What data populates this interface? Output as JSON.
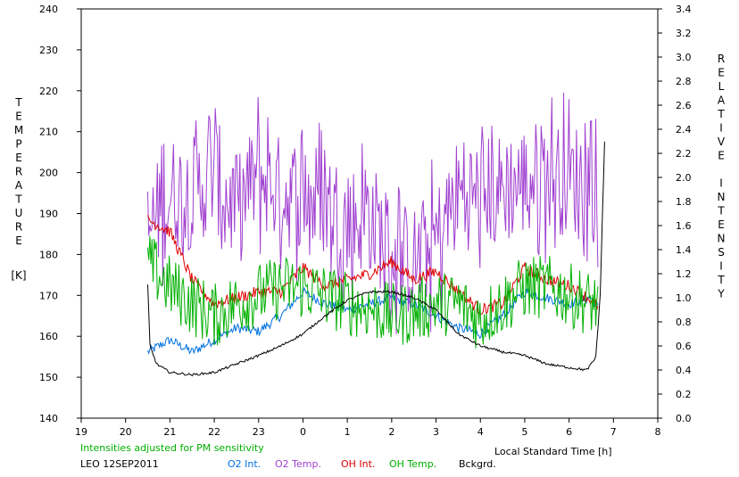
{
  "chart_data": {
    "type": "line",
    "x_axis": {
      "min": 19,
      "max": 8,
      "ticks": [
        "19",
        "20",
        "21",
        "22",
        "23",
        "0",
        "1",
        "2",
        "3",
        "4",
        "5",
        "6",
        "7",
        "8"
      ],
      "label": "Local Standard Time [h]"
    },
    "y_left": {
      "min": 140,
      "max": 240,
      "ticks": [
        140,
        150,
        160,
        170,
        180,
        190,
        200,
        210,
        220,
        230,
        240
      ],
      "label_letters": [
        "T",
        "E",
        "M",
        "P",
        "E",
        "R",
        "A",
        "T",
        "U",
        "R",
        "E"
      ],
      "unit": "[K]"
    },
    "y_right": {
      "min": 0.0,
      "max": 3.4,
      "ticks": [
        "0.0",
        "0.2",
        "0.4",
        "0.6",
        "0.8",
        "1.0",
        "1.2",
        "1.4",
        "1.6",
        "1.8",
        "2.0",
        "2.2",
        "2.4",
        "2.6",
        "2.8",
        "3.0",
        "3.2",
        "3.4"
      ],
      "label_letters": [
        "R",
        "E",
        "L",
        "A",
        "T",
        "I",
        "V",
        "E",
        "",
        "I",
        "N",
        "T",
        "E",
        "N",
        "S",
        "I",
        "T",
        "Y"
      ]
    },
    "note": "Intensities adjusted for PM sensitivity",
    "station": "LEO 12SEP2011",
    "series": [
      {
        "name": "O2 Int.",
        "color": "#0070e0",
        "axis": "right",
        "x": [
          20.5,
          21.0,
          21.5,
          22.0,
          22.5,
          23.0,
          23.5,
          0.0,
          0.5,
          1.0,
          1.5,
          2.0,
          2.5,
          3.0,
          3.5,
          4.0,
          4.5,
          5.0,
          5.5,
          6.0,
          6.5,
          6.65
        ],
        "y": [
          0.55,
          0.65,
          0.55,
          0.65,
          0.75,
          0.72,
          0.85,
          1.05,
          0.95,
          0.9,
          0.95,
          1.0,
          0.95,
          0.85,
          0.75,
          0.7,
          0.85,
          1.05,
          1.0,
          0.95,
          1.0,
          0.92
        ]
      },
      {
        "name": "O2 Temp.",
        "color": "#a040d0",
        "axis": "left",
        "x": [
          20.5,
          21.0,
          21.5,
          22.0,
          22.5,
          23.0,
          23.5,
          0.0,
          0.5,
          1.0,
          1.5,
          2.0,
          2.5,
          3.0,
          3.5,
          4.0,
          4.5,
          5.0,
          5.5,
          6.0,
          6.5,
          6.65
        ],
        "y": [
          185,
          195,
          195,
          200,
          190,
          200,
          195,
          195,
          193,
          188,
          190,
          180,
          178,
          183,
          195,
          195,
          196,
          198,
          200,
          198,
          200,
          190
        ]
      },
      {
        "name": "OH Int.",
        "color": "#e00000",
        "axis": "right",
        "x": [
          20.5,
          21.0,
          21.5,
          22.0,
          22.5,
          23.0,
          23.5,
          0.0,
          0.5,
          1.0,
          1.5,
          2.0,
          2.5,
          3.0,
          3.5,
          4.0,
          4.5,
          5.0,
          5.5,
          6.0,
          6.5,
          6.65
        ],
        "y": [
          1.65,
          1.55,
          1.15,
          0.95,
          1.0,
          1.05,
          1.05,
          1.25,
          1.1,
          1.15,
          1.2,
          1.3,
          1.15,
          1.22,
          1.05,
          0.9,
          0.95,
          1.25,
          1.15,
          1.1,
          0.98,
          0.92
        ]
      },
      {
        "name": "OH Temp.",
        "color": "#00b000",
        "axis": "left",
        "x": [
          20.5,
          21.0,
          21.5,
          22.0,
          22.5,
          23.0,
          23.5,
          0.0,
          0.5,
          1.0,
          1.5,
          2.0,
          2.5,
          3.0,
          3.5,
          4.0,
          4.5,
          5.0,
          5.5,
          6.0,
          6.5,
          6.65
        ],
        "y": [
          178,
          172,
          168,
          165,
          168,
          170,
          172,
          172,
          170,
          168,
          167,
          165,
          166,
          168,
          168,
          164,
          168,
          172,
          172,
          170,
          168,
          168
        ]
      },
      {
        "name": "Bckgrd.",
        "color": "#000000",
        "axis": "right",
        "x": [
          20.5,
          20.55,
          20.7,
          21.0,
          21.5,
          22.0,
          22.5,
          23.0,
          23.5,
          0.0,
          0.5,
          1.0,
          1.5,
          2.0,
          2.5,
          3.0,
          3.5,
          4.0,
          4.5,
          5.0,
          5.5,
          6.0,
          6.4,
          6.6,
          6.7,
          6.8
        ],
        "y": [
          1.1,
          0.6,
          0.45,
          0.38,
          0.36,
          0.38,
          0.45,
          0.52,
          0.6,
          0.7,
          0.85,
          0.98,
          1.05,
          1.05,
          1.0,
          0.9,
          0.7,
          0.6,
          0.55,
          0.52,
          0.45,
          0.42,
          0.4,
          0.5,
          1.0,
          2.3
        ]
      }
    ]
  }
}
